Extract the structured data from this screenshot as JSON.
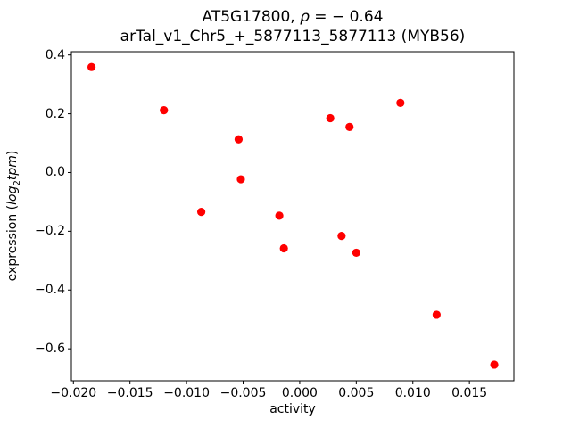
{
  "title": {
    "line1_prefix": "AT5G17800, ",
    "line1_rho": "ρ",
    "line1_eq": " = − 0.64",
    "line2": "arTal_v1_Chr5_+_5877113_5877113 (MYB56)"
  },
  "axes": {
    "xlabel": "activity",
    "ylabel_prefix": "expression (",
    "ylabel_log": "log",
    "ylabel_sub": "2",
    "ylabel_tpm": "tpm",
    "ylabel_close": ")"
  },
  "chart_data": {
    "type": "scatter",
    "title": "AT5G17800, ρ = −0.64\narTal_v1_Chr5_+_5877113_5877113 (MYB56)",
    "xlabel": "activity",
    "ylabel": "expression (log2 tpm)",
    "correlation_rho": -0.64,
    "grid": false,
    "legend": null,
    "marker": {
      "shape": "circle",
      "color": "#ff0000",
      "radius_px": 4.6
    },
    "axis_color": "#000000",
    "xlim": [
      -0.02018,
      0.01893
    ],
    "ylim": [
      -0.7088,
      0.4112
    ],
    "x_ticks": [
      -0.02,
      -0.015,
      -0.01,
      -0.005,
      0.0,
      0.005,
      0.01,
      0.015
    ],
    "x_tick_labels": [
      "−0.020",
      "−0.015",
      "−0.010",
      "−0.005",
      "0.000",
      "0.005",
      "0.010",
      "0.015"
    ],
    "y_ticks": [
      0.4,
      0.2,
      0.0,
      -0.2,
      -0.4,
      -0.6
    ],
    "y_tick_labels": [
      "0.4",
      "0.2",
      "0.0",
      "−0.2",
      "−0.4",
      "−0.6"
    ],
    "points": [
      {
        "x": -0.0184,
        "y": 0.359
      },
      {
        "x": -0.012,
        "y": 0.212
      },
      {
        "x": -0.0087,
        "y": -0.134
      },
      {
        "x": -0.0054,
        "y": 0.113
      },
      {
        "x": -0.0052,
        "y": -0.023
      },
      {
        "x": -0.0018,
        "y": -0.147
      },
      {
        "x": -0.0014,
        "y": -0.258
      },
      {
        "x": 0.0027,
        "y": 0.185
      },
      {
        "x": 0.0044,
        "y": 0.155
      },
      {
        "x": 0.0037,
        "y": -0.216
      },
      {
        "x": 0.005,
        "y": -0.273
      },
      {
        "x": 0.0089,
        "y": 0.237
      },
      {
        "x": 0.0121,
        "y": -0.484
      },
      {
        "x": 0.0172,
        "y": -0.654
      }
    ]
  }
}
